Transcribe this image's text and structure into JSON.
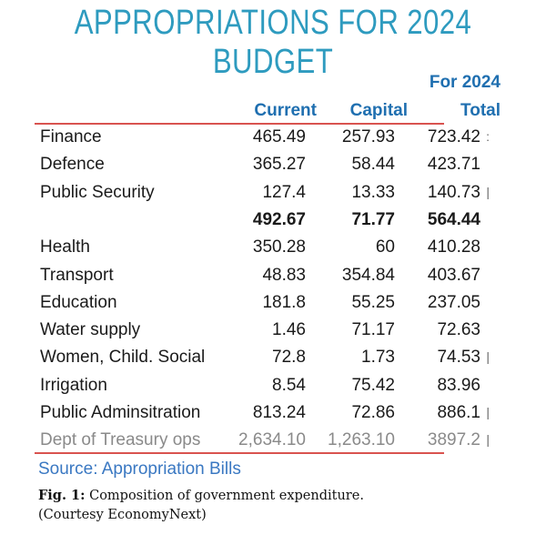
{
  "title": "APPROPRIATIONS FOR 2024 BUDGET",
  "table": {
    "group_header": "For 2024",
    "columns": [
      "Current",
      "Capital",
      "Total"
    ],
    "rows": [
      {
        "label": "Finance",
        "current": "465.49",
        "capital": "257.93",
        "total": "723.42",
        "mark": ":"
      },
      {
        "label": "Defence",
        "current": "365.27",
        "capital": "58.44",
        "total": "423.71",
        "mark": ""
      },
      {
        "label": "Public Security",
        "current": "127.4",
        "capital": "13.33",
        "total": "140.73",
        "mark": "|"
      },
      {
        "label": "",
        "current": "492.67",
        "capital": "71.77",
        "total": "564.44",
        "mark": "",
        "style": "bold"
      },
      {
        "label": "Health",
        "current": "350.28",
        "capital": "60",
        "total": "410.28",
        "mark": ""
      },
      {
        "label": "Transport",
        "current": "48.83",
        "capital": "354.84",
        "total": "403.67",
        "mark": ""
      },
      {
        "label": "Education",
        "current": "181.8",
        "capital": "55.25",
        "total": "237.05",
        "mark": ""
      },
      {
        "label": "Water supply",
        "current": "1.46",
        "capital": "71.17",
        "total": "72.63",
        "mark": ""
      },
      {
        "label": "Women, Child. Social",
        "current": "72.8",
        "capital": "1.73",
        "total": "74.53",
        "mark": "|"
      },
      {
        "label": "Irrigation",
        "current": "8.54",
        "capital": "75.42",
        "total": "83.96",
        "mark": ""
      },
      {
        "label": "Public Adminsitration",
        "current": "813.24",
        "capital": "72.86",
        "total": "886.1",
        "mark": "|"
      },
      {
        "label": "Dept of Treasury ops",
        "current": "2,634.10",
        "capital": "1,263.10",
        "total": "3897.2",
        "mark": "|",
        "style": "muted"
      }
    ]
  },
  "source": "Source: Appropriation Bills",
  "caption": {
    "label": "Fig. 1:",
    "text": " Composition of government expenditure.",
    "courtesy": "(Courtesy EconomyNext)"
  },
  "colors": {
    "title": "#2e9bbf",
    "header": "#1f6fb0",
    "rule": "#d9534f",
    "source": "#3a78c2"
  }
}
